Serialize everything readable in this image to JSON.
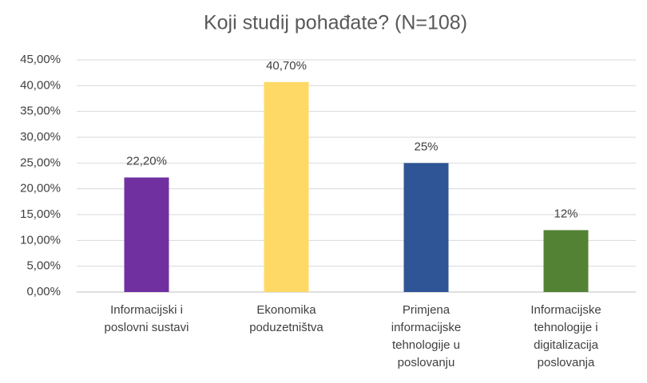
{
  "chart_data": {
    "type": "bar",
    "title": "Koji studij pohađate? (N=108)",
    "categories": [
      "Informacijski i poslovni sustavi",
      "Ekonomika poduzetništva",
      "Primjena informacijske tehnologije u poslovanju",
      "Informacijske tehnologije i digitalizacija poslovanja"
    ],
    "values": [
      22.2,
      40.7,
      25,
      12
    ],
    "value_labels": [
      "22,20%",
      "40,70%",
      "25%",
      "12%"
    ],
    "colors": [
      "#7030a0",
      "#ffd966",
      "#2f5597",
      "#548235"
    ],
    "ylim": [
      0,
      45
    ],
    "yticks": [
      {
        "value": 0,
        "label": "0,00%"
      },
      {
        "value": 5,
        "label": "5,00%"
      },
      {
        "value": 10,
        "label": "10,00%"
      },
      {
        "value": 15,
        "label": "15,00%"
      },
      {
        "value": 20,
        "label": "20,00%"
      },
      {
        "value": 25,
        "label": "25,00%"
      },
      {
        "value": 30,
        "label": "30,00%"
      },
      {
        "value": 35,
        "label": "35,00%"
      },
      {
        "value": 40,
        "label": "40,00%"
      },
      {
        "value": 45,
        "label": "45,00%"
      }
    ],
    "grid": true
  }
}
